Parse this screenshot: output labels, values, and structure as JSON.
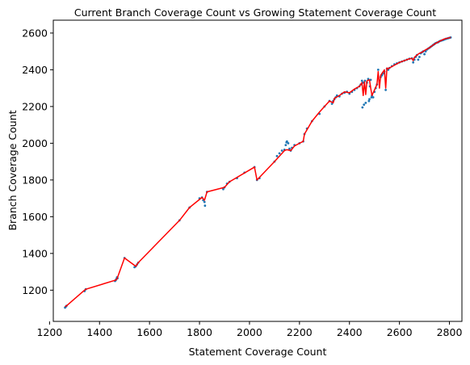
{
  "chart_data": {
    "type": "scatter",
    "title": "Current Branch Coverage Count vs Growing Statement Coverage Count",
    "xlabel": "Statement Coverage Count",
    "ylabel": "Branch Coverage Count",
    "xlim": [
      1215,
      2850
    ],
    "ylim": [
      1030,
      2670
    ],
    "xticks": [
      "1200",
      "1400",
      "1600",
      "1800",
      "2000",
      "2200",
      "2400",
      "2600",
      "2800"
    ],
    "yticks": [
      "1200",
      "1400",
      "1600",
      "1800",
      "2000",
      "2200",
      "2400",
      "2600"
    ],
    "grid": false,
    "colors": {
      "points": "#1f77b4",
      "line": "#ff0000"
    },
    "series": [
      {
        "type": "scatter",
        "x": [
          1262,
          1265,
          1268,
          1340,
          1345,
          1462,
          1465,
          1468,
          1470,
          1472,
          1500,
          1540,
          1545,
          1550,
          1555,
          1720,
          1760,
          1800,
          1810,
          1815,
          1820,
          1822,
          1830,
          1895,
          1900,
          1910,
          1920,
          1950,
          1980,
          2020,
          2030,
          2040,
          2100,
          2110,
          2120,
          2130,
          2140,
          2145,
          2148,
          2150,
          2155,
          2160,
          2165,
          2170,
          2180,
          2200,
          2215,
          2220,
          2230,
          2250,
          2280,
          2300,
          2320,
          2330,
          2335,
          2340,
          2345,
          2350,
          2360,
          2370,
          2380,
          2390,
          2400,
          2410,
          2420,
          2430,
          2440,
          2445,
          2450,
          2452,
          2455,
          2458,
          2460,
          2462,
          2465,
          2470,
          2475,
          2478,
          2480,
          2482,
          2485,
          2488,
          2490,
          2495,
          2500,
          2505,
          2510,
          2515,
          2520,
          2525,
          2530,
          2535,
          2540,
          2545,
          2550,
          2555,
          2560,
          2570,
          2580,
          2590,
          2600,
          2610,
          2620,
          2630,
          2640,
          2650,
          2655,
          2660,
          2665,
          2670,
          2675,
          2680,
          2685,
          2690,
          2695,
          2700,
          2705,
          2710,
          2715,
          2720,
          2725,
          2730,
          2735,
          2740,
          2745,
          2750,
          2755,
          2760,
          2765,
          2770,
          2775,
          2780,
          2785,
          2790,
          2795,
          2800,
          2805
        ],
        "y": [
          1105,
          1110,
          1115,
          1195,
          1205,
          1250,
          1255,
          1262,
          1270,
          1265,
          1375,
          1325,
          1330,
          1340,
          1350,
          1580,
          1650,
          1700,
          1705,
          1690,
          1680,
          1660,
          1735,
          1750,
          1760,
          1780,
          1790,
          1810,
          1840,
          1870,
          1800,
          1810,
          1900,
          1930,
          1945,
          1960,
          1965,
          1990,
          2005,
          2010,
          2000,
          1970,
          1960,
          1975,
          1990,
          2000,
          2010,
          2050,
          2080,
          2120,
          2160,
          2200,
          2230,
          2215,
          2230,
          2240,
          2250,
          2260,
          2255,
          2270,
          2275,
          2280,
          2270,
          2280,
          2290,
          2300,
          2310,
          2320,
          2340,
          2195,
          2330,
          2210,
          2310,
          2340,
          2220,
          2330,
          2350,
          2230,
          2240,
          2310,
          2345,
          2250,
          2260,
          2250,
          2280,
          2300,
          2320,
          2400,
          2340,
          2360,
          2370,
          2380,
          2390,
          2290,
          2405,
          2400,
          2410,
          2420,
          2430,
          2435,
          2440,
          2445,
          2450,
          2455,
          2460,
          2462,
          2440,
          2455,
          2470,
          2480,
          2455,
          2470,
          2490,
          2495,
          2500,
          2485,
          2500,
          2510,
          2515,
          2520,
          2525,
          2530,
          2535,
          2540,
          2545,
          2548,
          2550,
          2555,
          2558,
          2560,
          2562,
          2565,
          2568,
          2570,
          2572,
          2574,
          2576
        ]
      },
      {
        "type": "line",
        "x": [
          1262,
          1268,
          1340,
          1345,
          1465,
          1470,
          1500,
          1545,
          1555,
          1720,
          1760,
          1810,
          1820,
          1830,
          1900,
          1920,
          2020,
          2030,
          2100,
          2140,
          2150,
          2165,
          2180,
          2200,
          2215,
          2220,
          2250,
          2280,
          2320,
          2335,
          2340,
          2360,
          2380,
          2400,
          2420,
          2440,
          2450,
          2455,
          2460,
          2465,
          2470,
          2480,
          2485,
          2490,
          2500,
          2510,
          2515,
          2520,
          2525,
          2530,
          2540,
          2545,
          2550,
          2555,
          2560,
          2580,
          2600,
          2620,
          2640,
          2650,
          2655,
          2660,
          2670,
          2680,
          2690,
          2700,
          2720,
          2740,
          2760,
          2780,
          2800,
          2805
        ],
        "y": [
          1110,
          1115,
          1200,
          1205,
          1255,
          1262,
          1375,
          1330,
          1350,
          1580,
          1650,
          1705,
          1690,
          1735,
          1760,
          1790,
          1870,
          1800,
          1900,
          1960,
          1965,
          1960,
          1985,
          2000,
          2010,
          2050,
          2120,
          2170,
          2230,
          2220,
          2245,
          2260,
          2280,
          2275,
          2295,
          2310,
          2330,
          2260,
          2335,
          2265,
          2340,
          2345,
          2300,
          2260,
          2290,
          2320,
          2390,
          2300,
          2370,
          2380,
          2400,
          2300,
          2410,
          2405,
          2410,
          2425,
          2440,
          2450,
          2460,
          2462,
          2450,
          2468,
          2480,
          2490,
          2495,
          2505,
          2520,
          2540,
          2555,
          2568,
          2574,
          2577
        ]
      }
    ]
  }
}
